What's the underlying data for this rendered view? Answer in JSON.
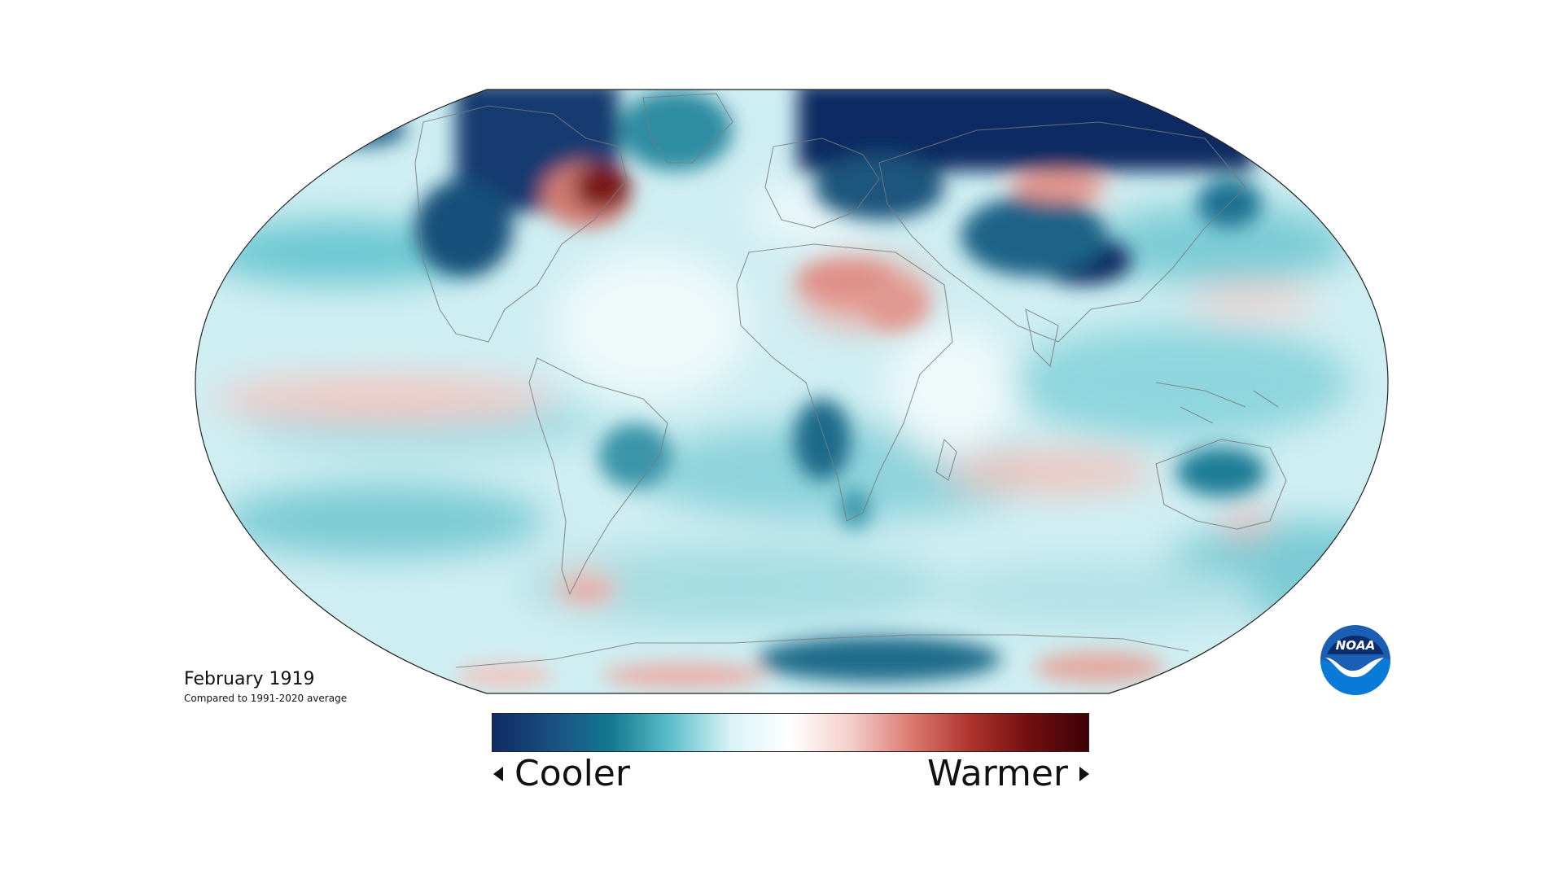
{
  "map": {
    "caption_title": "February 1919",
    "caption_subtitle": "Compared to 1991-2020 average"
  },
  "legend": {
    "cooler_label": "Cooler",
    "warmer_label": "Warmer",
    "colors": [
      "#0f2b62",
      "#1a4f82",
      "#137a91",
      "#5fc0cc",
      "#d9f3f6",
      "#ffffff",
      "#f4cfcb",
      "#dc7c72",
      "#b0342e",
      "#720f10",
      "#3d0205"
    ]
  },
  "logo": {
    "text": "NOAA",
    "icon": "noaa-logo-icon"
  }
}
